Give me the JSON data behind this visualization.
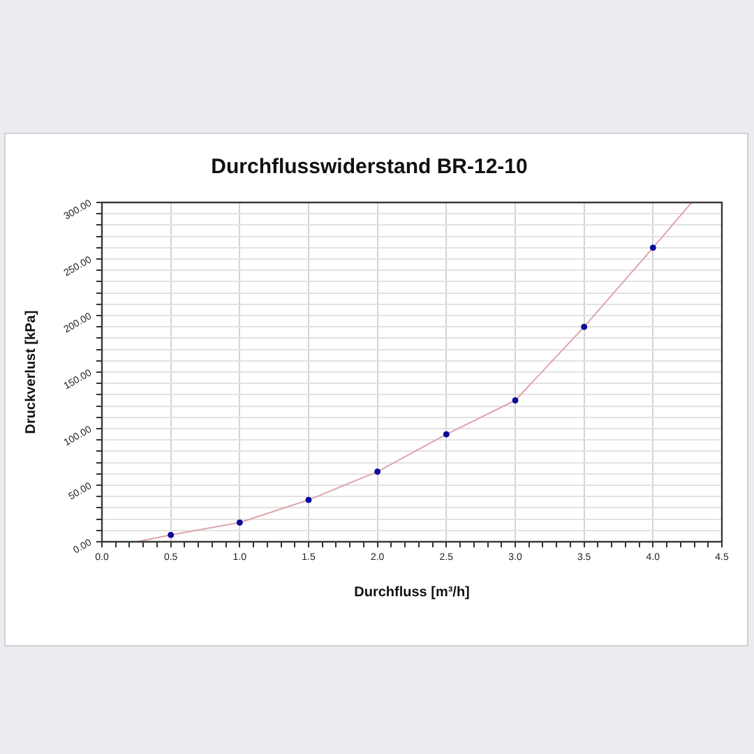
{
  "chart_data": {
    "type": "scatter",
    "title": "Durchflusswiderstand BR-12-10",
    "xlabel": "Durchfluss [m³/h]",
    "ylabel": "Druckverlust [kPa]",
    "x": [
      0.5,
      1,
      1.5,
      2,
      2.5,
      3,
      3.5,
      4
    ],
    "series": [
      {
        "type": "line",
        "color": "#e0a4ac",
        "marker": "none",
        "x": [
          0.25,
          0.5,
          1,
          1.5,
          2,
          2.5,
          3,
          3.5,
          4,
          4.28
        ],
        "values": [
          0,
          6,
          17,
          37,
          62,
          95,
          125,
          190,
          260,
          300
        ]
      },
      {
        "color": "#0a0a9c",
        "marker": "circle",
        "values": [
          6,
          17,
          37,
          62,
          95,
          125,
          190,
          260
        ]
      }
    ],
    "xlim": [
      0,
      4.5
    ],
    "xticks": [
      {
        "value": 0,
        "label": "0.0"
      },
      {
        "value": 0.1,
        "label": null
      },
      {
        "value": 0.2,
        "label": null
      },
      {
        "value": 0.3,
        "label": null
      },
      {
        "value": 0.4,
        "label": null
      },
      {
        "value": 0.5,
        "label": "0.5"
      },
      {
        "value": 0.6,
        "label": null
      },
      {
        "value": 0.7,
        "label": null
      },
      {
        "value": 0.8,
        "label": null
      },
      {
        "value": 0.9,
        "label": null
      },
      {
        "value": 1,
        "label": "1.0"
      },
      {
        "value": 1.1,
        "label": null
      },
      {
        "value": 1.2,
        "label": null
      },
      {
        "value": 1.3,
        "label": null
      },
      {
        "value": 1.4,
        "label": null
      },
      {
        "value": 1.5,
        "label": "1.5"
      },
      {
        "value": 1.6,
        "label": null
      },
      {
        "value": 1.7,
        "label": null
      },
      {
        "value": 1.8,
        "label": null
      },
      {
        "value": 1.9,
        "label": null
      },
      {
        "value": 2,
        "label": "2.0"
      },
      {
        "value": 2.1,
        "label": null
      },
      {
        "value": 2.2,
        "label": null
      },
      {
        "value": 2.3,
        "label": null
      },
      {
        "value": 2.4,
        "label": null
      },
      {
        "value": 2.5,
        "label": "2.5"
      },
      {
        "value": 2.6,
        "label": null
      },
      {
        "value": 2.7,
        "label": null
      },
      {
        "value": 2.8,
        "label": null
      },
      {
        "value": 2.9,
        "label": null
      },
      {
        "value": 3,
        "label": "3.0"
      },
      {
        "value": 3.1,
        "label": null
      },
      {
        "value": 3.2,
        "label": null
      },
      {
        "value": 3.3,
        "label": null
      },
      {
        "value": 3.4,
        "label": null
      },
      {
        "value": 3.5,
        "label": "3.5"
      },
      {
        "value": 3.6,
        "label": null
      },
      {
        "value": 3.7,
        "label": null
      },
      {
        "value": 3.8,
        "label": null
      },
      {
        "value": 3.9,
        "label": null
      },
      {
        "value": 4,
        "label": "4.0"
      },
      {
        "value": 4.1,
        "label": null
      },
      {
        "value": 4.2,
        "label": null
      },
      {
        "value": 4.3,
        "label": null
      },
      {
        "value": 4.4,
        "label": null
      },
      {
        "value": 4.5,
        "label": "4.5"
      }
    ],
    "ylim": [
      0,
      300
    ],
    "yticks": [
      {
        "value": 0,
        "label": "0.00"
      },
      {
        "value": 10,
        "label": null
      },
      {
        "value": 20,
        "label": null
      },
      {
        "value": 30,
        "label": null
      },
      {
        "value": 40,
        "label": null
      },
      {
        "value": 50,
        "label": "50.00"
      },
      {
        "value": 60,
        "label": null
      },
      {
        "value": 70,
        "label": null
      },
      {
        "value": 80,
        "label": null
      },
      {
        "value": 90,
        "label": null
      },
      {
        "value": 100,
        "label": "100.00"
      },
      {
        "value": 110,
        "label": null
      },
      {
        "value": 120,
        "label": null
      },
      {
        "value": 130,
        "label": null
      },
      {
        "value": 140,
        "label": null
      },
      {
        "value": 150,
        "label": "150.00"
      },
      {
        "value": 160,
        "label": null
      },
      {
        "value": 170,
        "label": null
      },
      {
        "value": 180,
        "label": null
      },
      {
        "value": 190,
        "label": null
      },
      {
        "value": 200,
        "label": "200.00"
      },
      {
        "value": 210,
        "label": null
      },
      {
        "value": 220,
        "label": null
      },
      {
        "value": 230,
        "label": null
      },
      {
        "value": 240,
        "label": null
      },
      {
        "value": 250,
        "label": "250.00"
      },
      {
        "value": 260,
        "label": null
      },
      {
        "value": 270,
        "label": null
      },
      {
        "value": 280,
        "label": null
      },
      {
        "value": 290,
        "label": null
      },
      {
        "value": 300,
        "label": "300.00"
      }
    ],
    "grid": true,
    "legend": false
  }
}
